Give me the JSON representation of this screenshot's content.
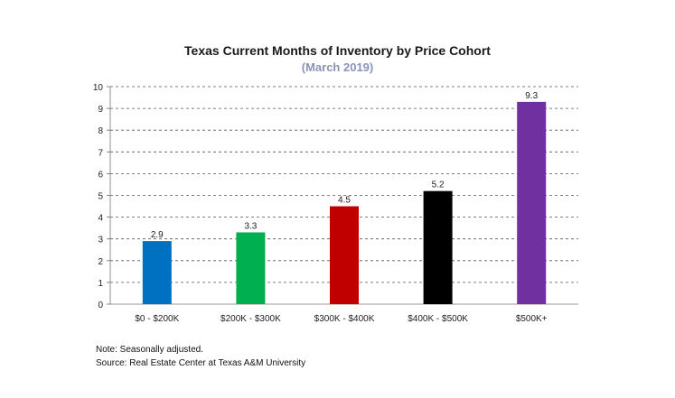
{
  "chart_data": {
    "type": "bar",
    "title": "Texas Current Months of Inventory by Price Cohort",
    "subtitle": "(March 2019)",
    "categories": [
      "$0 - $200K",
      "$200K - $300K",
      "$300K - $400K",
      "$400K - $500K",
      "$500K+"
    ],
    "values": [
      2.9,
      3.3,
      4.5,
      5.2,
      9.3
    ],
    "data_labels": [
      "2.9",
      "3.3",
      "4.5",
      "5.2",
      "9.3"
    ],
    "colors": [
      "#0070C0",
      "#00B050",
      "#C00000",
      "#000000",
      "#7030A0"
    ],
    "ylim": [
      0,
      10
    ],
    "yticks": [
      "0",
      "1",
      "2",
      "3",
      "4",
      "5",
      "6",
      "7",
      "8",
      "9",
      "10"
    ],
    "grid": true,
    "grid_style": "dashed",
    "legend": "none",
    "xlabel": "",
    "ylabel": ""
  },
  "notes": {
    "note": "Note: Seasonally adjusted.",
    "source": "Source: Real Estate Center at Texas A&M University"
  }
}
